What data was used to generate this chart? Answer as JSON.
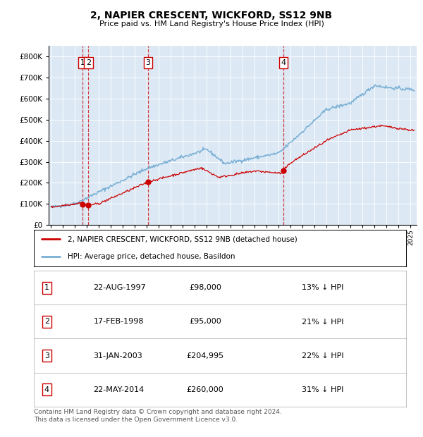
{
  "title": "2, NAPIER CRESCENT, WICKFORD, SS12 9NB",
  "subtitle": "Price paid vs. HM Land Registry's House Price Index (HPI)",
  "legend_line1": "2, NAPIER CRESCENT, WICKFORD, SS12 9NB (detached house)",
  "legend_line2": "HPI: Average price, detached house, Basildon",
  "footer": "Contains HM Land Registry data © Crown copyright and database right 2024.\nThis data is licensed under the Open Government Licence v3.0.",
  "sales": [
    {
      "num": 1,
      "date_label": "22-AUG-1997",
      "price_label": "£98,000",
      "hpi_label": "13% ↓ HPI",
      "year": 1997.64,
      "price": 98000
    },
    {
      "num": 2,
      "date_label": "17-FEB-1998",
      "price_label": "£95,000",
      "hpi_label": "21% ↓ HPI",
      "year": 1998.12,
      "price": 95000
    },
    {
      "num": 3,
      "date_label": "31-JAN-2003",
      "price_label": "£204,995",
      "hpi_label": "22% ↓ HPI",
      "year": 2003.08,
      "price": 204995
    },
    {
      "num": 4,
      "date_label": "22-MAY-2014",
      "price_label": "£260,000",
      "hpi_label": "31% ↓ HPI",
      "year": 2014.39,
      "price": 260000
    }
  ],
  "sale_line_color": "#cc0000",
  "hpi_line_color": "#7aafd4",
  "plot_bg_color": "#dce9f5",
  "ylim": [
    0,
    850000
  ],
  "xlim_start": 1994.8,
  "xlim_end": 2025.5,
  "yticks": [
    0,
    100000,
    200000,
    300000,
    400000,
    500000,
    600000,
    700000,
    800000
  ]
}
